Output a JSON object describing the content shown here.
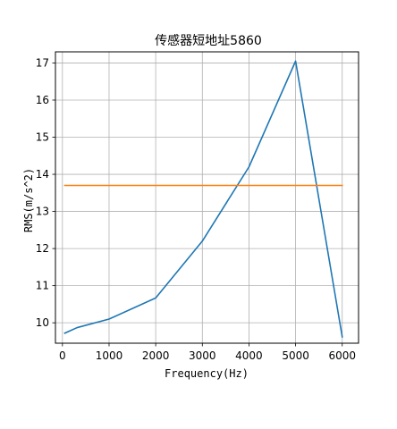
{
  "chart_data": {
    "type": "line",
    "title": "传感器短地址5860",
    "xlabel": "Frequency(Hz)",
    "ylabel": "RMS(m/s^2)",
    "xlim": [
      -150,
      6350
    ],
    "ylim": [
      9.45,
      17.3
    ],
    "xticks": [
      0,
      1000,
      2000,
      3000,
      4000,
      5000,
      6000
    ],
    "yticks": [
      10,
      11,
      12,
      13,
      14,
      15,
      16,
      17
    ],
    "grid": true,
    "series": [
      {
        "color": "#1f77b4",
        "x": [
          50,
          315,
          1000,
          2000,
          3000,
          4000,
          5000,
          6000
        ],
        "y": [
          9.72,
          9.87,
          10.1,
          10.67,
          12.2,
          14.2,
          17.05,
          9.62
        ]
      },
      {
        "color": "#ff7f0e",
        "x": [
          50,
          6000
        ],
        "y": [
          13.7,
          13.7
        ]
      }
    ]
  }
}
